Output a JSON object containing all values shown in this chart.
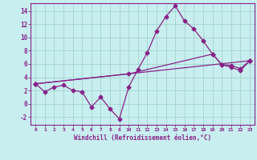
{
  "xlabel": "Windchill (Refroidissement éolien,°C)",
  "bg_color": "#c8eef0",
  "grid_color": "#a0d4cc",
  "line_color": "#882288",
  "xlim": [
    -0.5,
    23.5
  ],
  "ylim": [
    -3.2,
    15.2
  ],
  "xticks": [
    0,
    1,
    2,
    3,
    4,
    5,
    6,
    7,
    8,
    9,
    10,
    11,
    12,
    13,
    14,
    15,
    16,
    17,
    18,
    19,
    20,
    21,
    22,
    23
  ],
  "yticks": [
    -2,
    0,
    2,
    4,
    6,
    8,
    10,
    12,
    14
  ],
  "line1_x": [
    0,
    1,
    2,
    3,
    4,
    5,
    6,
    7,
    8,
    9,
    10,
    11,
    12,
    13,
    14,
    15,
    16,
    17,
    18,
    19,
    20,
    21,
    22,
    23
  ],
  "line1_y": [
    3.0,
    1.8,
    2.5,
    2.8,
    2.0,
    1.8,
    -0.5,
    1.0,
    -0.8,
    -2.3,
    2.5,
    5.2,
    7.7,
    11.0,
    13.2,
    14.8,
    12.5,
    11.3,
    9.5,
    7.5,
    5.9,
    5.5,
    5.0,
    6.5
  ],
  "line2_x": [
    0,
    23
  ],
  "line2_y": [
    3.0,
    6.5
  ],
  "line3_x": [
    0,
    10,
    19,
    20,
    21,
    22,
    23
  ],
  "line3_y": [
    3.0,
    4.5,
    7.5,
    5.9,
    5.8,
    5.3,
    6.5
  ]
}
